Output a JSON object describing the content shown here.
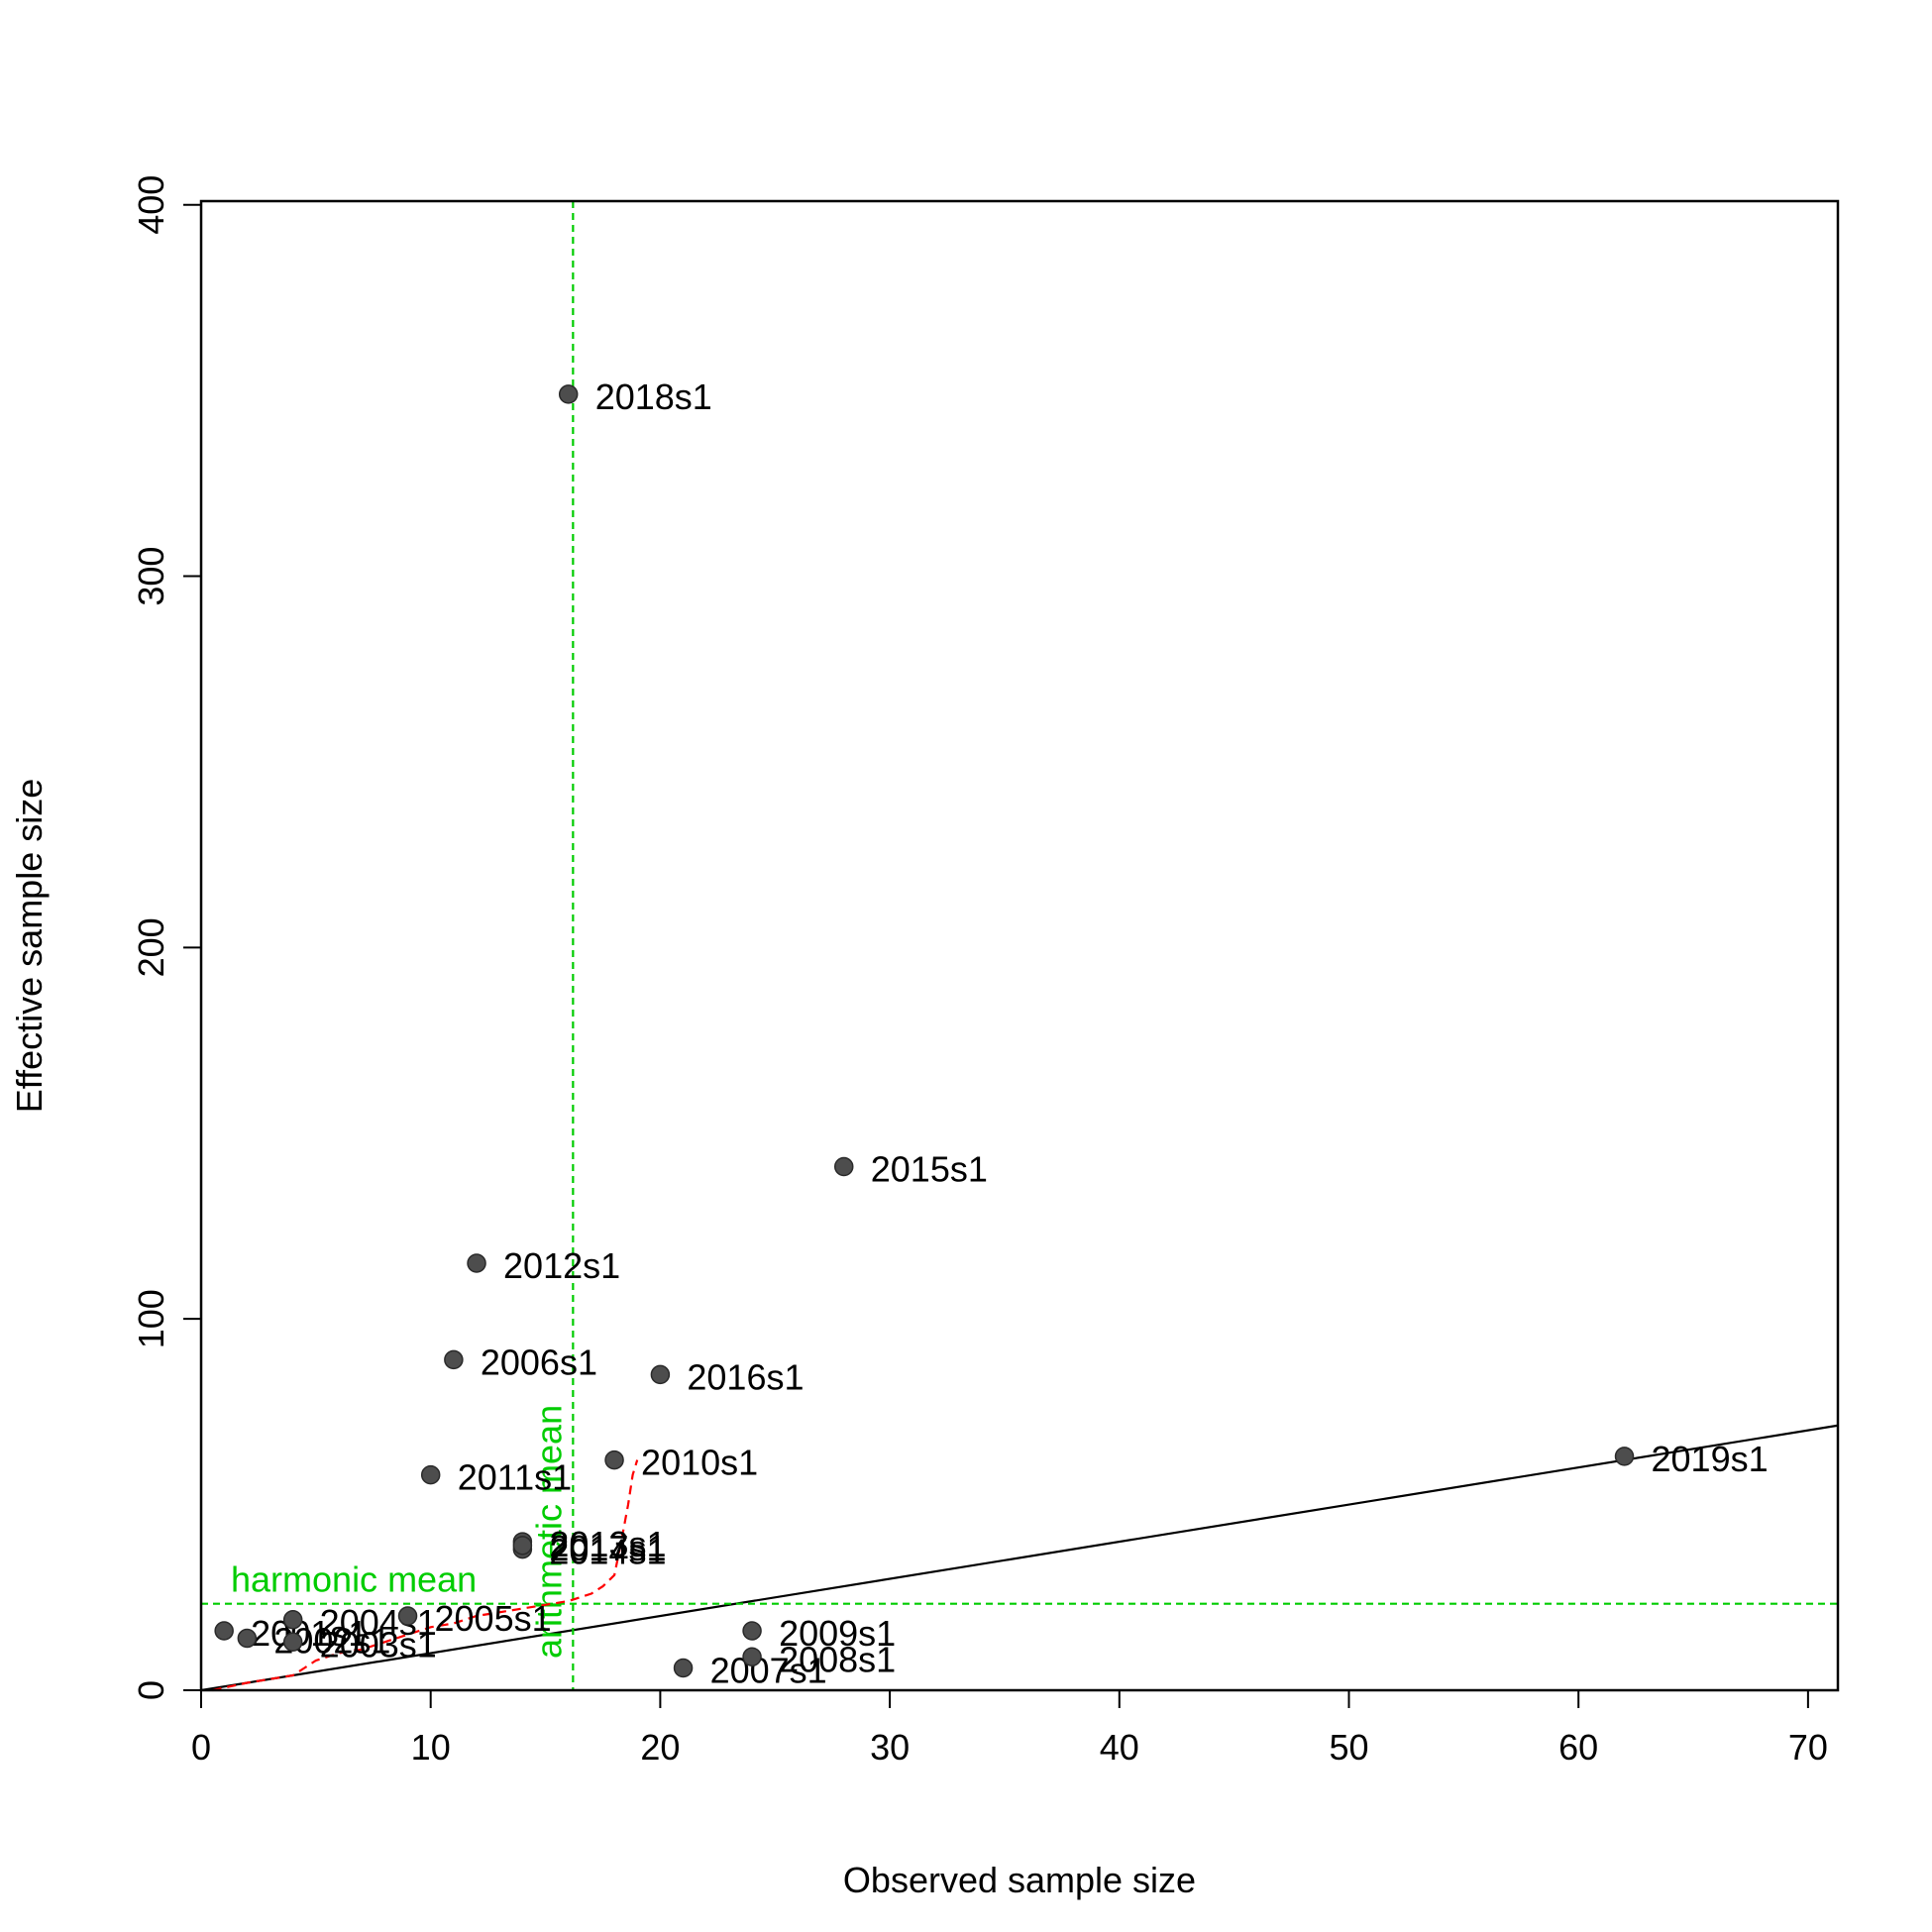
{
  "chart_data": {
    "type": "scatter",
    "title": "",
    "xlabel": "Observed sample size",
    "ylabel": "Effective sample size",
    "xlim": [
      0,
      71.3
    ],
    "ylim": [
      0,
      401
    ],
    "xticks": [
      0,
      10,
      20,
      30,
      40,
      50,
      60,
      70
    ],
    "yticks": [
      0,
      100,
      200,
      300,
      400
    ],
    "grid": false,
    "legend": "none",
    "point_color": "#4d4d4d",
    "points": [
      {
        "label": "2001s1",
        "x": 1,
        "y": 16
      },
      {
        "label": "2002s1",
        "x": 2,
        "y": 14
      },
      {
        "label": "2003s1",
        "x": 4,
        "y": 13
      },
      {
        "label": "2004s1",
        "x": 4,
        "y": 19
      },
      {
        "label": "2005s1",
        "x": 9,
        "y": 20
      },
      {
        "label": "2006s1",
        "x": 11,
        "y": 89
      },
      {
        "label": "2007s1",
        "x": 21,
        "y": 6
      },
      {
        "label": "2008s1",
        "x": 24,
        "y": 9
      },
      {
        "label": "2009s1",
        "x": 24,
        "y": 16
      },
      {
        "label": "2010s1",
        "x": 18,
        "y": 62
      },
      {
        "label": "2011s1",
        "x": 10,
        "y": 58
      },
      {
        "label": "2012s1",
        "x": 12,
        "y": 115
      },
      {
        "label": "2013s1",
        "x": 14,
        "y": 40
      },
      {
        "label": "2014s1",
        "x": 14,
        "y": 38
      },
      {
        "label": "2015s1",
        "x": 28,
        "y": 141
      },
      {
        "label": "2016s1",
        "x": 20,
        "y": 85
      },
      {
        "label": "2017s1",
        "x": 14,
        "y": 39
      },
      {
        "label": "2018s1",
        "x": 16,
        "y": 349
      },
      {
        "label": "2019s1",
        "x": 62,
        "y": 63
      }
    ],
    "reference_lines": {
      "one_to_one": {
        "color": "#000000"
      },
      "arithmetic_mean": {
        "label": "arithmetic mean",
        "axis": "x",
        "value": 16.2,
        "color": "#00cc00"
      },
      "harmonic_mean": {
        "label": "harmonic mean",
        "axis": "y",
        "value": 23.3,
        "color": "#00cc00"
      }
    },
    "loess_curve": {
      "color": "#ff0000",
      "points": [
        [
          0.5,
          0
        ],
        [
          2,
          2
        ],
        [
          4,
          4
        ],
        [
          4.5,
          6
        ],
        [
          5,
          8
        ],
        [
          6,
          10
        ],
        [
          7,
          11
        ],
        [
          8,
          13
        ],
        [
          9,
          15
        ],
        [
          10,
          17
        ],
        [
          11,
          18
        ],
        [
          12,
          20
        ],
        [
          13,
          21
        ],
        [
          14,
          22
        ],
        [
          15,
          23
        ],
        [
          16,
          24
        ],
        [
          17,
          26
        ],
        [
          17.5,
          28
        ],
        [
          18,
          31
        ],
        [
          18.3,
          40
        ],
        [
          18.6,
          50
        ],
        [
          18.8,
          58
        ],
        [
          19,
          62
        ]
      ]
    }
  }
}
